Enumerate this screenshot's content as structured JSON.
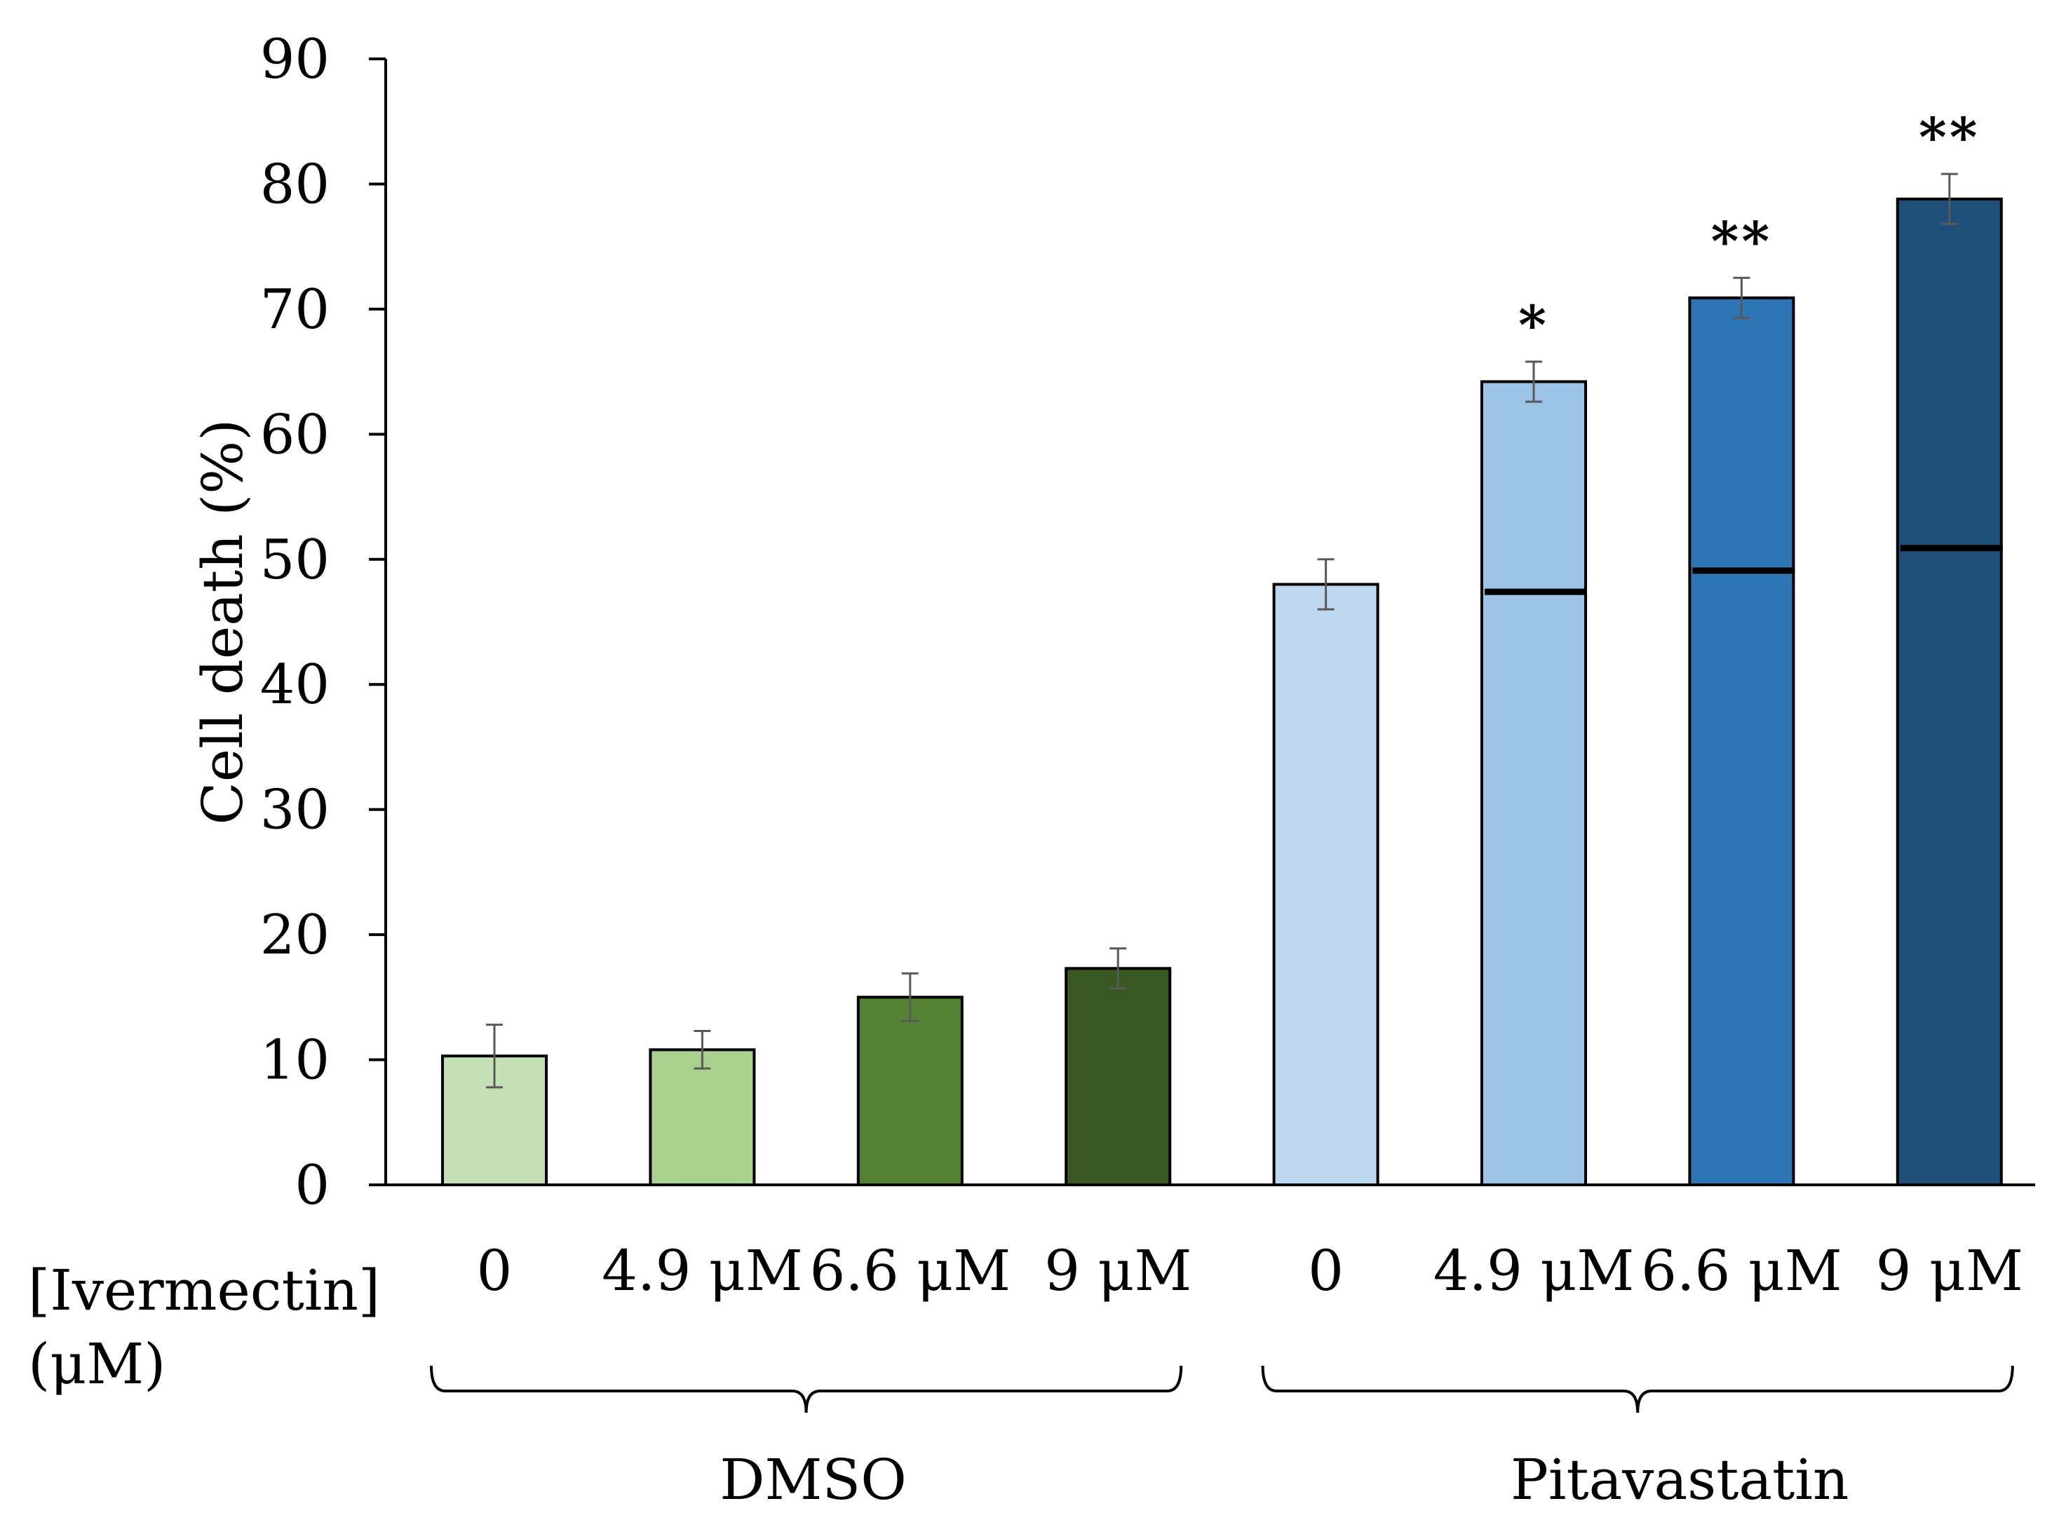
{
  "chart_data": {
    "type": "bar",
    "ylabel": "Cell death (%)",
    "xlabel_line1": "[Ivermectin]",
    "xlabel_line2": "(μM)",
    "ylim": [
      0,
      90
    ],
    "yticks": [
      0,
      10,
      20,
      30,
      40,
      50,
      60,
      70,
      80,
      90
    ],
    "ytick_labels": [
      "0",
      "10",
      "20",
      "30",
      "40",
      "50",
      "60",
      "70",
      "80",
      "90"
    ],
    "categories": [
      "0",
      "4.9 μM",
      "6.6 μM",
      "9 μM",
      "0",
      "4.9 μM",
      "6.6 μM",
      "9 μM"
    ],
    "values": [
      10.3,
      10.8,
      15.0,
      17.3,
      48.0,
      64.2,
      70.9,
      78.8
    ],
    "errors": [
      2.5,
      1.5,
      1.9,
      1.6,
      2.0,
      1.6,
      1.6,
      2.0
    ],
    "colors": [
      "#c5e0b4",
      "#a9d18e",
      "#548235",
      "#385723",
      "#bdd7ee",
      "#9dc3e6",
      "#2e75b6",
      "#1f4e79"
    ],
    "significance": [
      "",
      "",
      "",
      "",
      "",
      "*",
      "**",
      "**"
    ],
    "reference_lines": [
      null,
      null,
      null,
      null,
      null,
      47.4,
      49.1,
      50.9
    ],
    "groups": [
      {
        "label": "DMSO",
        "start": 0,
        "end": 3
      },
      {
        "label": "Pitavastatin",
        "start": 4,
        "end": 7
      }
    ]
  }
}
